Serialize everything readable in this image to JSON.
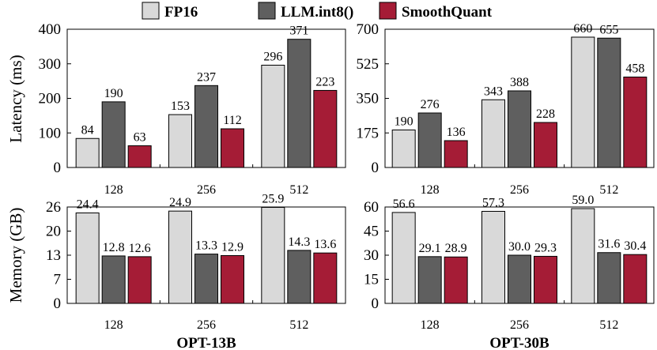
{
  "legend": [
    {
      "label": "FP16",
      "color": "#d9d9d9"
    },
    {
      "label": "LLM.int8()",
      "color": "#5f5f5f"
    },
    {
      "label": "SmoothQuant",
      "color": "#a51c36"
    }
  ],
  "chart_data": [
    {
      "type": "bar",
      "panel": "latency-opt13b",
      "ylabel": "Latency (ms)",
      "categories": [
        "128",
        "256",
        "512"
      ],
      "ylim": [
        0,
        400
      ],
      "yticks": [
        "0",
        "100",
        "200",
        "300",
        "400"
      ],
      "series": [
        {
          "name": "FP16",
          "values": [
            84,
            153,
            296
          ],
          "labels": [
            "84",
            "153",
            "296"
          ]
        },
        {
          "name": "LLM.int8()",
          "values": [
            190,
            237,
            371
          ],
          "labels": [
            "190",
            "237",
            "371"
          ]
        },
        {
          "name": "SmoothQuant",
          "values": [
            63,
            112,
            223
          ],
          "labels": [
            "63",
            "112",
            "223"
          ]
        }
      ]
    },
    {
      "type": "bar",
      "panel": "latency-opt30b",
      "ylabel": "",
      "categories": [
        "128",
        "256",
        "512"
      ],
      "ylim": [
        0,
        700
      ],
      "yticks": [
        "0",
        "175",
        "350",
        "525",
        "700"
      ],
      "series": [
        {
          "name": "FP16",
          "values": [
            190,
            343,
            660
          ],
          "labels": [
            "190",
            "343",
            "660"
          ]
        },
        {
          "name": "LLM.int8()",
          "values": [
            276,
            388,
            655
          ],
          "labels": [
            "276",
            "388",
            "655"
          ]
        },
        {
          "name": "SmoothQuant",
          "values": [
            136,
            228,
            458
          ],
          "labels": [
            "136",
            "228",
            "458"
          ]
        }
      ]
    },
    {
      "type": "bar",
      "panel": "memory-opt13b",
      "ylabel": "Memory (GB)",
      "title": "OPT-13B",
      "categories": [
        "128",
        "256",
        "512"
      ],
      "ylim": [
        0,
        26
      ],
      "yticks": [
        "0",
        "7",
        "13",
        "20",
        "26"
      ],
      "series": [
        {
          "name": "FP16",
          "values": [
            24.4,
            24.9,
            25.9
          ],
          "labels": [
            "24.4",
            "24.9",
            "25.9"
          ]
        },
        {
          "name": "LLM.int8()",
          "values": [
            12.8,
            13.3,
            14.3
          ],
          "labels": [
            "12.8",
            "13.3",
            "14.3"
          ]
        },
        {
          "name": "SmoothQuant",
          "values": [
            12.6,
            12.9,
            13.6
          ],
          "labels": [
            "12.6",
            "12.9",
            "13.6"
          ]
        }
      ]
    },
    {
      "type": "bar",
      "panel": "memory-opt30b",
      "ylabel": "",
      "title": "OPT-30B",
      "categories": [
        "128",
        "256",
        "512"
      ],
      "ylim": [
        0,
        60
      ],
      "yticks": [
        "0",
        "15",
        "30",
        "45",
        "60"
      ],
      "series": [
        {
          "name": "FP16",
          "values": [
            56.6,
            57.3,
            59.0
          ],
          "labels": [
            "56.6",
            "57.3",
            "59.0"
          ]
        },
        {
          "name": "LLM.int8()",
          "values": [
            29.1,
            30.0,
            31.6
          ],
          "labels": [
            "29.1",
            "30.0",
            "31.6"
          ]
        },
        {
          "name": "SmoothQuant",
          "values": [
            28.9,
            29.3,
            30.4
          ],
          "labels": [
            "28.9",
            "29.3",
            "30.4"
          ]
        }
      ]
    }
  ]
}
